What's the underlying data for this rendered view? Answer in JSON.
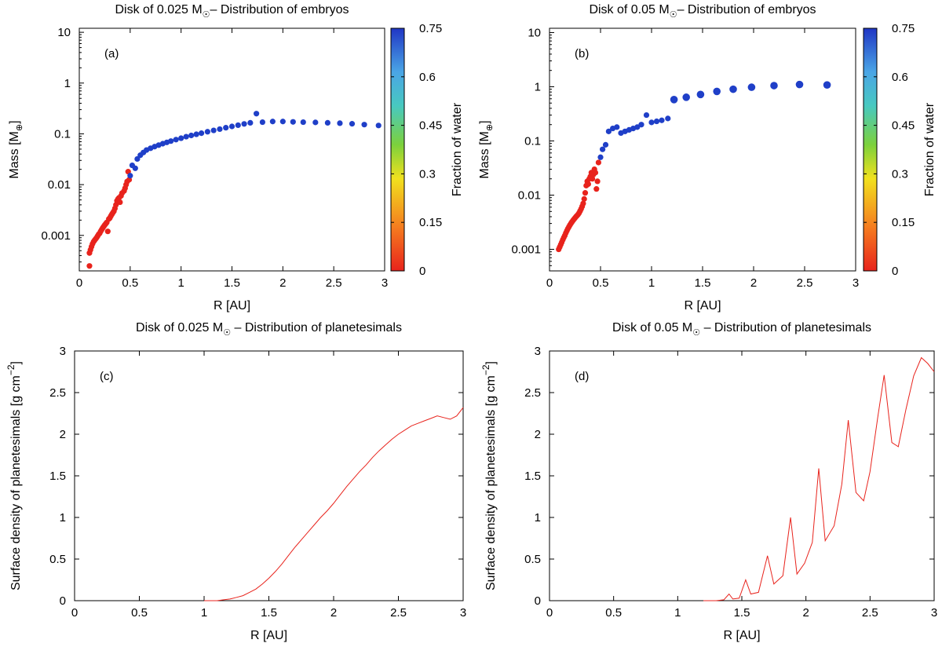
{
  "chart_data": [
    {
      "panel": "a",
      "type": "scatter",
      "title": "Disk of 0.025 M",
      "title_subscript_symbol": "☉",
      "title_rest": "– Distribution of embryos",
      "xlabel": "R [AU]",
      "ylabel": "Mass [M",
      "ylabel_symbol": "⊕",
      "ylabel_end": "]",
      "tag": "(a)",
      "xlim": [
        0,
        3
      ],
      "ylim": [
        0.0002,
        12
      ],
      "yscale": "log",
      "xticks": [
        "0",
        "0.5",
        "1",
        "1.5",
        "2",
        "2.5",
        "3"
      ],
      "yticks": [
        "0.001",
        "0.01",
        "0.1",
        "1",
        "10"
      ],
      "colorbar": {
        "label": "Fraction of water",
        "range": [
          0,
          0.75
        ],
        "ticks": [
          "0",
          "0.15",
          "0.3",
          "0.45",
          "0.6",
          "0.75"
        ]
      },
      "series": [
        {
          "water": 0,
          "color": "#e8231c",
          "points": [
            [
              0.1,
              0.00025
            ],
            [
              0.1,
              0.00045
            ],
            [
              0.11,
              0.00052
            ],
            [
              0.12,
              0.0006
            ],
            [
              0.13,
              0.00068
            ],
            [
              0.14,
              0.00075
            ],
            [
              0.15,
              0.0008
            ],
            [
              0.16,
              0.00085
            ],
            [
              0.17,
              0.0009
            ],
            [
              0.18,
              0.00097
            ],
            [
              0.19,
              0.00105
            ],
            [
              0.2,
              0.0011
            ],
            [
              0.21,
              0.0012
            ],
            [
              0.22,
              0.0013
            ],
            [
              0.23,
              0.0014
            ],
            [
              0.24,
              0.0015
            ],
            [
              0.25,
              0.0016
            ],
            [
              0.26,
              0.0017
            ],
            [
              0.27,
              0.0018
            ],
            [
              0.28,
              0.0012
            ],
            [
              0.29,
              0.0021
            ],
            [
              0.3,
              0.0022
            ],
            [
              0.31,
              0.0024
            ],
            [
              0.32,
              0.0026
            ],
            [
              0.33,
              0.0028
            ],
            [
              0.34,
              0.003
            ],
            [
              0.35,
              0.0034
            ],
            [
              0.36,
              0.004
            ],
            [
              0.37,
              0.0048
            ],
            [
              0.38,
              0.0052
            ],
            [
              0.39,
              0.0055
            ],
            [
              0.4,
              0.0045
            ],
            [
              0.41,
              0.006
            ],
            [
              0.42,
              0.0068
            ],
            [
              0.44,
              0.0075
            ],
            [
              0.45,
              0.0085
            ],
            [
              0.46,
              0.01
            ],
            [
              0.47,
              0.0115
            ],
            [
              0.48,
              0.018
            ],
            [
              0.49,
              0.0125
            ]
          ]
        },
        {
          "water": 0.75,
          "color": "#1f3fc8",
          "points": [
            [
              0.5,
              0.015
            ],
            [
              0.52,
              0.024
            ],
            [
              0.55,
              0.021
            ],
            [
              0.57,
              0.032
            ],
            [
              0.6,
              0.038
            ],
            [
              0.63,
              0.043
            ],
            [
              0.66,
              0.048
            ],
            [
              0.7,
              0.052
            ],
            [
              0.74,
              0.056
            ],
            [
              0.78,
              0.06
            ],
            [
              0.82,
              0.064
            ],
            [
              0.86,
              0.068
            ],
            [
              0.9,
              0.072
            ],
            [
              0.95,
              0.077
            ],
            [
              1.0,
              0.082
            ],
            [
              1.05,
              0.088
            ],
            [
              1.1,
              0.093
            ],
            [
              1.15,
              0.098
            ],
            [
              1.2,
              0.103
            ],
            [
              1.26,
              0.11
            ],
            [
              1.32,
              0.117
            ],
            [
              1.38,
              0.124
            ],
            [
              1.44,
              0.132
            ],
            [
              1.5,
              0.14
            ],
            [
              1.56,
              0.148
            ],
            [
              1.62,
              0.157
            ],
            [
              1.68,
              0.165
            ],
            [
              1.74,
              0.25
            ],
            [
              1.8,
              0.17
            ],
            [
              1.9,
              0.175
            ],
            [
              2.0,
              0.175
            ],
            [
              2.1,
              0.172
            ],
            [
              2.2,
              0.17
            ],
            [
              2.32,
              0.168
            ],
            [
              2.44,
              0.165
            ],
            [
              2.56,
              0.162
            ],
            [
              2.68,
              0.158
            ],
            [
              2.8,
              0.152
            ],
            [
              2.94,
              0.146
            ]
          ]
        }
      ]
    },
    {
      "panel": "b",
      "type": "scatter",
      "title": "Disk of 0.05 M",
      "title_subscript_symbol": "☉",
      "title_rest": "– Distribution of embryos",
      "xlabel": "R [AU]",
      "ylabel": "Mass [M",
      "ylabel_symbol": "⊕",
      "ylabel_end": "]",
      "tag": "(b)",
      "xlim": [
        0,
        3
      ],
      "ylim": [
        0.0004,
        12
      ],
      "yscale": "log",
      "xticks": [
        "0",
        "0.5",
        "1",
        "1.5",
        "2",
        "2.5",
        "3"
      ],
      "yticks": [
        "0.001",
        "0.01",
        "0.1",
        "1",
        "10"
      ],
      "colorbar": {
        "label": "Fraction of water",
        "range": [
          0,
          0.75
        ],
        "ticks": [
          "0",
          "0.15",
          "0.3",
          "0.45",
          "0.6",
          "0.75"
        ]
      },
      "series": [
        {
          "water": 0,
          "color": "#e8231c",
          "points": [
            [
              0.09,
              0.001
            ],
            [
              0.1,
              0.0011
            ],
            [
              0.11,
              0.00122
            ],
            [
              0.12,
              0.00135
            ],
            [
              0.13,
              0.0015
            ],
            [
              0.14,
              0.00165
            ],
            [
              0.15,
              0.0018
            ],
            [
              0.16,
              0.002
            ],
            [
              0.17,
              0.0022
            ],
            [
              0.18,
              0.0024
            ],
            [
              0.19,
              0.0026
            ],
            [
              0.2,
              0.0028
            ],
            [
              0.21,
              0.003
            ],
            [
              0.22,
              0.0032
            ],
            [
              0.23,
              0.0034
            ],
            [
              0.24,
              0.0036
            ],
            [
              0.25,
              0.0038
            ],
            [
              0.26,
              0.004
            ],
            [
              0.27,
              0.0042
            ],
            [
              0.28,
              0.0044
            ],
            [
              0.29,
              0.0047
            ],
            [
              0.3,
              0.0051
            ],
            [
              0.31,
              0.0056
            ],
            [
              0.32,
              0.0062
            ],
            [
              0.33,
              0.007
            ],
            [
              0.34,
              0.0085
            ],
            [
              0.35,
              0.011
            ],
            [
              0.36,
              0.015
            ],
            [
              0.37,
              0.018
            ],
            [
              0.38,
              0.016
            ],
            [
              0.39,
              0.02
            ],
            [
              0.4,
              0.022
            ],
            [
              0.41,
              0.026
            ],
            [
              0.42,
              0.02
            ],
            [
              0.43,
              0.024
            ],
            [
              0.44,
              0.03
            ],
            [
              0.45,
              0.026
            ],
            [
              0.46,
              0.013
            ],
            [
              0.47,
              0.018
            ],
            [
              0.48,
              0.04
            ]
          ]
        },
        {
          "water": 0.75,
          "color": "#1f3fc8",
          "points": [
            [
              0.5,
              0.05
            ],
            [
              0.52,
              0.07
            ],
            [
              0.55,
              0.085
            ],
            [
              0.58,
              0.15
            ],
            [
              0.62,
              0.17
            ],
            [
              0.66,
              0.18
            ],
            [
              0.7,
              0.14
            ],
            [
              0.74,
              0.15
            ],
            [
              0.78,
              0.16
            ],
            [
              0.82,
              0.17
            ],
            [
              0.86,
              0.18
            ],
            [
              0.9,
              0.2
            ],
            [
              0.95,
              0.3
            ],
            [
              1.0,
              0.22
            ],
            [
              1.05,
              0.23
            ],
            [
              1.1,
              0.24
            ],
            [
              1.16,
              0.26
            ],
            [
              1.22,
              0.58
            ],
            [
              1.34,
              0.64
            ],
            [
              1.48,
              0.72
            ],
            [
              1.64,
              0.82
            ],
            [
              1.8,
              0.9
            ],
            [
              1.98,
              0.98
            ],
            [
              2.2,
              1.05
            ],
            [
              2.45,
              1.1
            ],
            [
              2.72,
              1.08
            ]
          ]
        }
      ]
    },
    {
      "panel": "c",
      "type": "line",
      "title": "Disk of 0.025 M",
      "title_subscript_symbol": "☉",
      "title_rest": " – Distribution of planetesimals",
      "xlabel": "R [AU]",
      "ylabel": "Surface density of planetesimals [g cm",
      "ylabel_sup": "−2",
      "ylabel_end": "]",
      "tag": "(c)",
      "xlim": [
        0,
        3
      ],
      "ylim": [
        0,
        3
      ],
      "xticks": [
        "0",
        "0.5",
        "1",
        "1.5",
        "2",
        "2.5",
        "3"
      ],
      "yticks": [
        "0",
        "0.5",
        "1",
        "1.5",
        "2",
        "2.5",
        "3"
      ],
      "series": [
        {
          "color": "#e8231c",
          "points": [
            [
              1.0,
              0.0
            ],
            [
              1.1,
              0.0
            ],
            [
              1.15,
              0.01
            ],
            [
              1.2,
              0.02
            ],
            [
              1.25,
              0.04
            ],
            [
              1.3,
              0.06
            ],
            [
              1.35,
              0.1
            ],
            [
              1.4,
              0.14
            ],
            [
              1.45,
              0.2
            ],
            [
              1.5,
              0.27
            ],
            [
              1.55,
              0.35
            ],
            [
              1.6,
              0.44
            ],
            [
              1.65,
              0.54
            ],
            [
              1.7,
              0.64
            ],
            [
              1.75,
              0.73
            ],
            [
              1.8,
              0.82
            ],
            [
              1.85,
              0.91
            ],
            [
              1.9,
              1.0
            ],
            [
              1.95,
              1.08
            ],
            [
              2.0,
              1.17
            ],
            [
              2.05,
              1.27
            ],
            [
              2.1,
              1.37
            ],
            [
              2.15,
              1.46
            ],
            [
              2.2,
              1.55
            ],
            [
              2.25,
              1.63
            ],
            [
              2.3,
              1.72
            ],
            [
              2.35,
              1.8
            ],
            [
              2.4,
              1.87
            ],
            [
              2.45,
              1.94
            ],
            [
              2.5,
              2.0
            ],
            [
              2.55,
              2.05
            ],
            [
              2.6,
              2.1
            ],
            [
              2.65,
              2.13
            ],
            [
              2.7,
              2.16
            ],
            [
              2.75,
              2.19
            ],
            [
              2.8,
              2.22
            ],
            [
              2.85,
              2.2
            ],
            [
              2.9,
              2.18
            ],
            [
              2.95,
              2.22
            ],
            [
              3.0,
              2.32
            ]
          ]
        }
      ]
    },
    {
      "panel": "d",
      "type": "line",
      "title": "Disk of 0.05 M",
      "title_subscript_symbol": "☉",
      "title_rest": " – Distribution of planetesimals",
      "xlabel": "R [AU]",
      "ylabel": "Surface density of planetesimals [g cm",
      "ylabel_sup": "−2",
      "ylabel_end": "]",
      "tag": "(d)",
      "xlim": [
        0,
        3
      ],
      "ylim": [
        0,
        3
      ],
      "xticks": [
        "0",
        "0.5",
        "1",
        "1.5",
        "2",
        "2.5",
        "3"
      ],
      "yticks": [
        "0",
        "0.5",
        "1",
        "1.5",
        "2",
        "2.5",
        "3"
      ],
      "series": [
        {
          "color": "#e8231c",
          "points": [
            [
              1.2,
              0.0
            ],
            [
              1.3,
              0.0
            ],
            [
              1.36,
              0.01
            ],
            [
              1.4,
              0.08
            ],
            [
              1.43,
              0.02
            ],
            [
              1.48,
              0.03
            ],
            [
              1.53,
              0.25
            ],
            [
              1.57,
              0.08
            ],
            [
              1.63,
              0.1
            ],
            [
              1.7,
              0.54
            ],
            [
              1.75,
              0.2
            ],
            [
              1.82,
              0.3
            ],
            [
              1.88,
              1.0
            ],
            [
              1.93,
              0.32
            ],
            [
              1.99,
              0.45
            ],
            [
              2.05,
              0.7
            ],
            [
              2.1,
              1.59
            ],
            [
              2.15,
              0.72
            ],
            [
              2.22,
              0.9
            ],
            [
              2.28,
              1.4
            ],
            [
              2.33,
              2.17
            ],
            [
              2.39,
              1.3
            ],
            [
              2.45,
              1.2
            ],
            [
              2.5,
              1.55
            ],
            [
              2.56,
              2.2
            ],
            [
              2.61,
              2.71
            ],
            [
              2.67,
              1.9
            ],
            [
              2.72,
              1.85
            ],
            [
              2.78,
              2.3
            ],
            [
              2.84,
              2.7
            ],
            [
              2.9,
              2.92
            ],
            [
              2.95,
              2.85
            ],
            [
              3.0,
              2.75
            ]
          ]
        }
      ]
    }
  ]
}
